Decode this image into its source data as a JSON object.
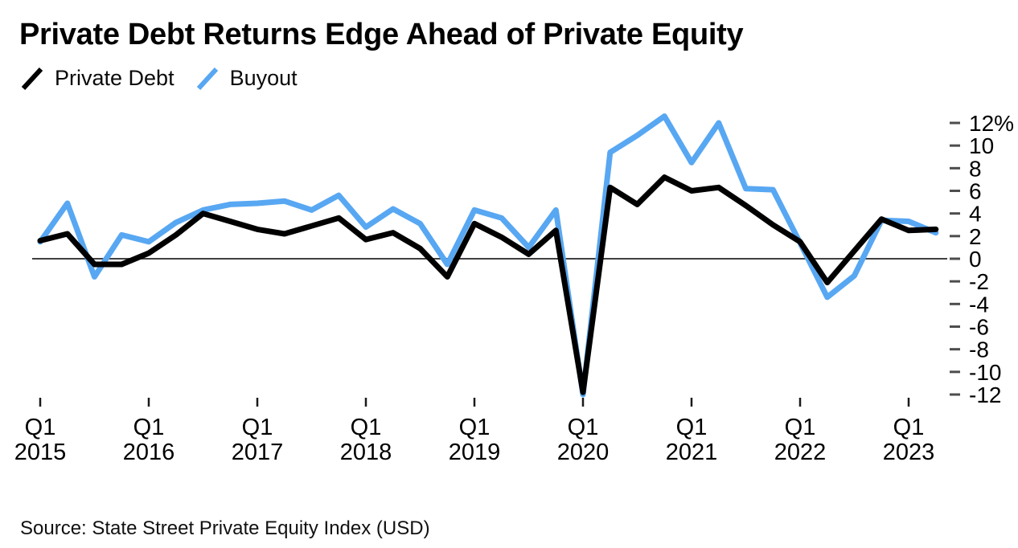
{
  "title": "Private Debt Returns Edge Ahead of Private Equity",
  "legend": {
    "items": [
      {
        "label": "Private Debt",
        "color": "#000000"
      },
      {
        "label": "Buyout",
        "color": "#58a7f2"
      }
    ]
  },
  "source": "Source: State Street Private Equity Index (USD)",
  "colors": {
    "background": "#ffffff",
    "private_debt_line": "#000000",
    "buyout_line": "#58a7f2",
    "zero_line": "#404040",
    "tick_mark": "#4d4d4d",
    "axis_text": "#000000"
  },
  "chart_data": {
    "type": "line",
    "title": "Private Debt Returns Edge Ahead of Private Equity",
    "x_categories": [
      "Q1 2015",
      "Q2 2015",
      "Q3 2015",
      "Q4 2015",
      "Q1 2016",
      "Q2 2016",
      "Q3 2016",
      "Q4 2016",
      "Q1 2017",
      "Q2 2017",
      "Q3 2017",
      "Q4 2017",
      "Q1 2018",
      "Q2 2018",
      "Q3 2018",
      "Q4 2018",
      "Q1 2019",
      "Q2 2019",
      "Q3 2019",
      "Q4 2019",
      "Q1 2020",
      "Q2 2020",
      "Q3 2020",
      "Q4 2020",
      "Q1 2021",
      "Q2 2021",
      "Q3 2021",
      "Q4 2021",
      "Q1 2022",
      "Q2 2022",
      "Q3 2022",
      "Q4 2022",
      "Q1 2023",
      "Q2 2023"
    ],
    "series": [
      {
        "name": "Private Debt",
        "color": "#000000",
        "values": [
          1.6,
          2.2,
          -0.5,
          -0.5,
          0.5,
          2.1,
          4.0,
          3.3,
          2.6,
          2.2,
          2.9,
          3.6,
          1.7,
          2.3,
          0.9,
          -1.6,
          3.1,
          1.9,
          0.4,
          2.5,
          -11.8,
          6.3,
          4.8,
          7.2,
          6.0,
          6.3,
          4.7,
          3.0,
          1.5,
          -2.1,
          0.7,
          3.5,
          2.5,
          2.6
        ]
      },
      {
        "name": "Buyout",
        "color": "#58a7f2",
        "values": [
          1.5,
          4.9,
          -1.6,
          2.1,
          1.5,
          3.2,
          4.3,
          4.8,
          4.9,
          5.1,
          4.3,
          5.6,
          2.8,
          4.4,
          3.1,
          -0.5,
          4.3,
          3.6,
          1.0,
          4.3,
          -12.0,
          9.4,
          10.9,
          12.6,
          8.5,
          12.0,
          6.2,
          6.1,
          1.4,
          -3.4,
          -1.5,
          3.4,
          3.3,
          2.3
        ]
      }
    ],
    "ylabel": "%",
    "ylim": [
      -12.5,
      12.7
    ],
    "y_axis_side": "right",
    "grid": false,
    "zero_baseline": true,
    "legend_position": "top-left",
    "y_ticks": [
      {
        "value": 12,
        "label": "12%"
      },
      {
        "value": 10,
        "label": "10"
      },
      {
        "value": 8,
        "label": "8"
      },
      {
        "value": 6,
        "label": "6"
      },
      {
        "value": 4,
        "label": "4"
      },
      {
        "value": 2,
        "label": "2"
      },
      {
        "value": 0,
        "label": "0"
      },
      {
        "value": -2,
        "label": "-2"
      },
      {
        "value": -4,
        "label": "-4"
      },
      {
        "value": -6,
        "label": "-6"
      },
      {
        "value": -8,
        "label": "-8"
      },
      {
        "value": -10,
        "label": "-10"
      },
      {
        "value": -12,
        "label": "-12"
      }
    ],
    "x_ticks": [
      {
        "index": 0,
        "top": "Q1",
        "bottom": "2015"
      },
      {
        "index": 4,
        "top": "Q1",
        "bottom": "2016"
      },
      {
        "index": 8,
        "top": "Q1",
        "bottom": "2017"
      },
      {
        "index": 12,
        "top": "Q1",
        "bottom": "2018"
      },
      {
        "index": 16,
        "top": "Q1",
        "bottom": "2019"
      },
      {
        "index": 20,
        "top": "Q1",
        "bottom": "2020"
      },
      {
        "index": 24,
        "top": "Q1",
        "bottom": "2021"
      },
      {
        "index": 28,
        "top": "Q1",
        "bottom": "2022"
      },
      {
        "index": 32,
        "top": "Q1",
        "bottom": "2023"
      }
    ]
  }
}
